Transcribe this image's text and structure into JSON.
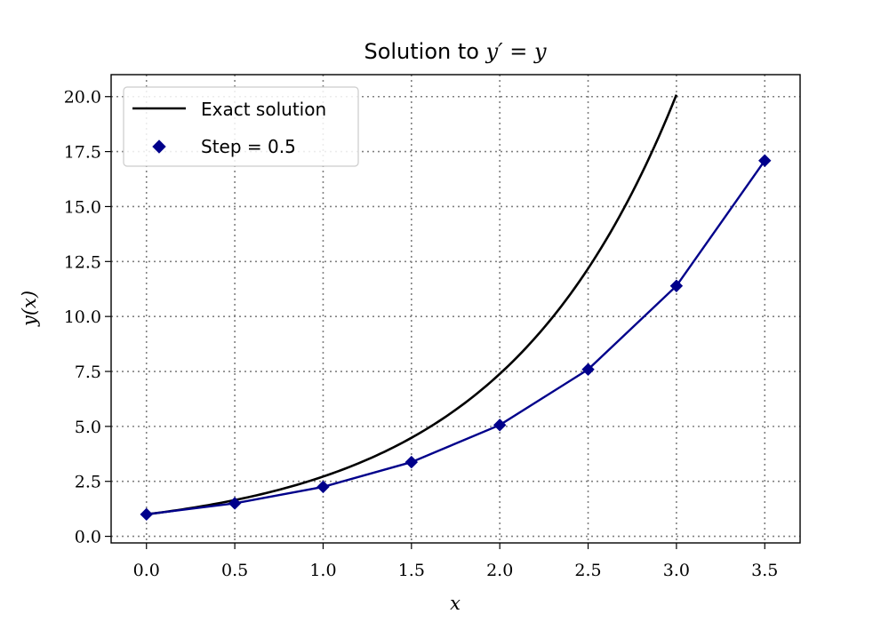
{
  "chart_data": {
    "type": "line",
    "title": {
      "text": "Solution to ",
      "math": "y′ = y"
    },
    "xlabel": "x",
    "ylabel": "y(x)",
    "xlim": [
      -0.2,
      3.7
    ],
    "ylim": [
      -0.3,
      21.0
    ],
    "xticks": [
      0.0,
      0.5,
      1.0,
      1.5,
      2.0,
      2.5,
      3.0,
      3.5
    ],
    "xtick_labels": [
      "0.0",
      "0.5",
      "1.0",
      "1.5",
      "2.0",
      "2.5",
      "3.0",
      "3.5"
    ],
    "yticks": [
      0.0,
      2.5,
      5.0,
      7.5,
      10.0,
      12.5,
      15.0,
      17.5,
      20.0
    ],
    "ytick_labels": [
      "0.0",
      "2.5",
      "5.0",
      "7.5",
      "10.0",
      "12.5",
      "15.0",
      "17.5",
      "20.0"
    ],
    "grid": true,
    "legend_position": "top-left",
    "series": [
      {
        "name": "Exact solution",
        "style": "line",
        "color": "#000000",
        "function": "exp",
        "x_range": [
          0.0,
          3.0
        ]
      },
      {
        "name": "Step = 0.5",
        "style": "line-markers",
        "marker": "diamond",
        "color": "#00008b",
        "x": [
          0.0,
          0.5,
          1.0,
          1.5,
          2.0,
          2.5,
          3.0,
          3.5
        ],
        "values": [
          1.0,
          1.5,
          2.25,
          3.375,
          5.0625,
          7.59,
          11.39,
          17.09
        ]
      }
    ]
  }
}
